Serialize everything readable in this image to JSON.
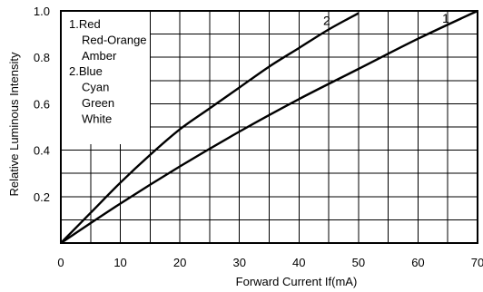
{
  "chart_data": {
    "type": "line",
    "xlabel": "Forward Current If(mA)",
    "ylabel": "Relative Luminous Intensity",
    "xlim": [
      0,
      70
    ],
    "ylim": [
      0,
      1.0
    ],
    "x_ticks": [
      "0",
      "10",
      "20",
      "30",
      "40",
      "50",
      "60",
      "70"
    ],
    "y_ticks": [
      "0.2",
      "0.4",
      "0.6",
      "0.8",
      "1.0"
    ],
    "x_minor_step": 5,
    "y_minor_step": 0.1,
    "grid": true,
    "legend": {
      "placement": "top-left",
      "lines": [
        "1.Red",
        "Red-Orange",
        "Amber",
        "2.Blue",
        "Cyan",
        "Green",
        "White"
      ]
    },
    "series": [
      {
        "name": "1",
        "x": [
          0,
          10,
          20,
          30,
          40,
          50,
          60,
          70
        ],
        "y": [
          0,
          0.17,
          0.33,
          0.48,
          0.62,
          0.75,
          0.88,
          1.0
        ]
      },
      {
        "name": "2",
        "x": [
          0,
          5,
          10,
          15,
          20,
          25,
          30,
          35,
          40,
          45,
          50
        ],
        "y": [
          0,
          0.13,
          0.26,
          0.38,
          0.49,
          0.58,
          0.67,
          0.76,
          0.84,
          0.92,
          0.99
        ]
      }
    ]
  }
}
